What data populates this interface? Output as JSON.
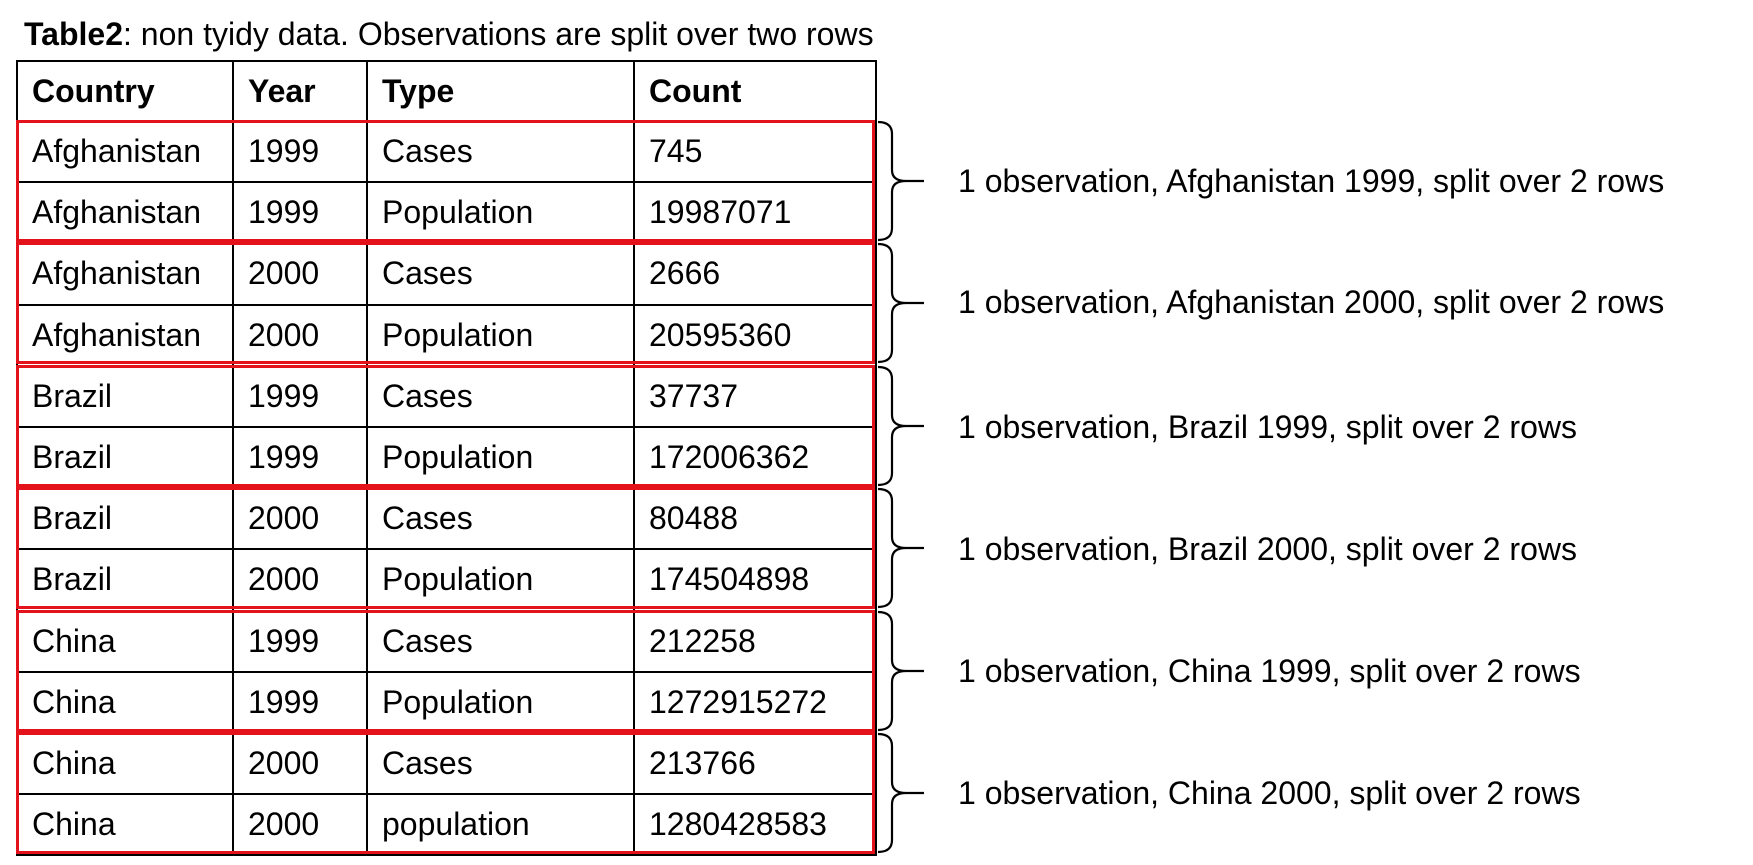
{
  "title": {
    "bold": "Table2",
    "rest": ": non tyidy data. Observations are split over two rows"
  },
  "table": {
    "headers": [
      "Country",
      "Year",
      "Type",
      "Count"
    ],
    "rows": [
      [
        "Afghanistan",
        "1999",
        "Cases",
        "745"
      ],
      [
        "Afghanistan",
        "1999",
        "Population",
        "19987071"
      ],
      [
        "Afghanistan",
        "2000",
        "Cases",
        "2666"
      ],
      [
        "Afghanistan",
        "2000",
        "Population",
        "20595360"
      ],
      [
        "Brazil",
        "1999",
        "Cases",
        "37737"
      ],
      [
        "Brazil",
        "1999",
        "Population",
        "172006362"
      ],
      [
        "Brazil",
        "2000",
        "Cases",
        "80488"
      ],
      [
        "Brazil",
        "2000",
        "Population",
        "174504898"
      ],
      [
        "China",
        "1999",
        "Cases",
        "212258"
      ],
      [
        "China",
        "1999",
        "Population",
        "1272915272"
      ],
      [
        "China",
        "2000",
        "Cases",
        "213766"
      ],
      [
        "China",
        "2000",
        "population",
        "1280428583"
      ]
    ]
  },
  "annotations": [
    "1 observation, Afghanistan 1999, split over 2 rows",
    "1 observation, Afghanistan 2000, split over 2 rows",
    "1 observation, Brazil 1999, split over 2 rows",
    "1 observation, Brazil 2000, split over 2 rows",
    "1 observation, China 1999, split over 2 rows",
    "1 observation, China 2000, split over 2 rows"
  ],
  "colors": {
    "highlight_box": "#e3121b",
    "grid": "#000000",
    "text": "#000000"
  }
}
